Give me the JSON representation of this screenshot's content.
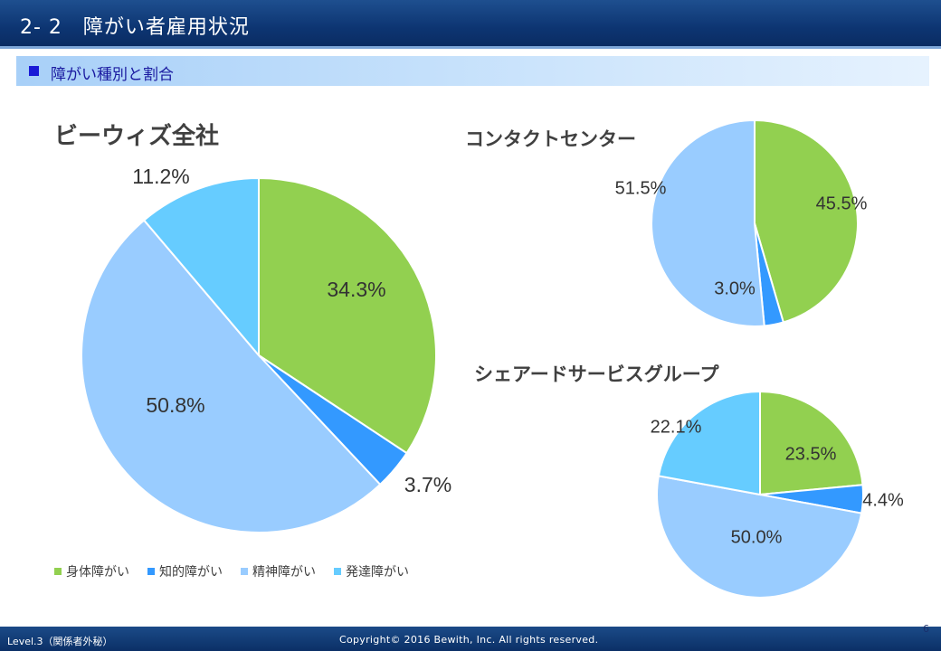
{
  "header": {
    "title": "2- 2　障がい者雇用状況"
  },
  "subheader": {
    "title": "障がい種別と割合"
  },
  "legend": [
    {
      "label": "身体障がい",
      "color": "#92d050"
    },
    {
      "label": "知的障がい",
      "color": "#3399ff"
    },
    {
      "label": "精神障がい",
      "color": "#99ccff"
    },
    {
      "label": "発達障がい",
      "color": "#66ccff"
    }
  ],
  "footer": {
    "left": "Level.3（関係者外秘）",
    "center": "Copyright© 2016 Bewith, Inc. All rights reserved.",
    "page": "6"
  },
  "chart_data": [
    {
      "type": "pie",
      "title": "ビーウィズ全社",
      "categories": [
        "身体障がい",
        "知的障がい",
        "精神障がい",
        "発達障がい"
      ],
      "values": [
        34.3,
        3.7,
        50.8,
        11.2
      ],
      "labels": [
        "34.3%",
        "3.7%",
        "50.8%",
        "11.2%"
      ],
      "colors": [
        "#92d050",
        "#3399ff",
        "#99ccff",
        "#66ccff"
      ]
    },
    {
      "type": "pie",
      "title": "コンタクトセンター",
      "categories": [
        "身体障がい",
        "知的障がい",
        "精神障がい"
      ],
      "values": [
        45.5,
        3.0,
        51.5
      ],
      "labels": [
        "45.5%",
        "3.0%",
        "51.5%"
      ],
      "colors": [
        "#92d050",
        "#3399ff",
        "#99ccff"
      ]
    },
    {
      "type": "pie",
      "title": "シェアードサービスグループ",
      "categories": [
        "身体障がい",
        "知的障がい",
        "精神障がい",
        "発達障がい"
      ],
      "values": [
        23.5,
        4.4,
        50.0,
        22.1
      ],
      "labels": [
        "23.5%",
        "4.4%",
        "50.0%",
        "22.1%"
      ],
      "colors": [
        "#92d050",
        "#3399ff",
        "#99ccff",
        "#66ccff"
      ]
    }
  ]
}
